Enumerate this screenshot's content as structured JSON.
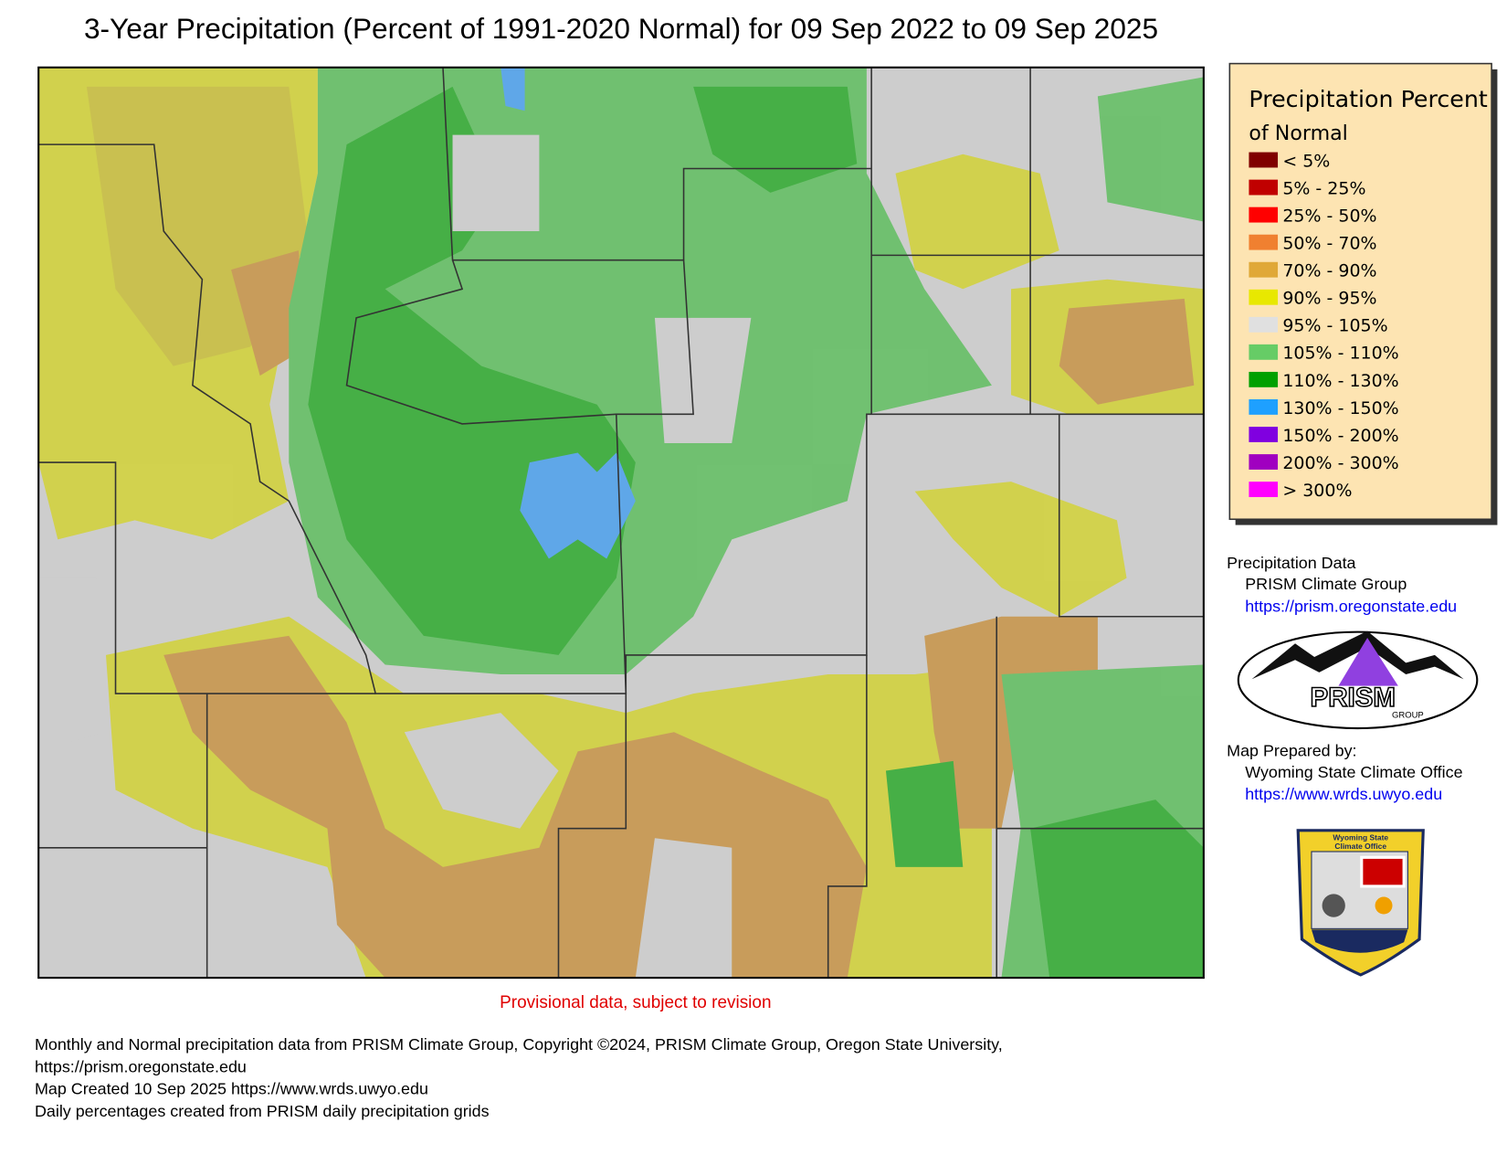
{
  "title": "3-Year Precipitation (Percent of 1991-2020 Normal) for 09 Sep 2022 to 09 Sep 2025",
  "legend": {
    "title_line1": "Precipitation Percent",
    "title_line2": "of Normal",
    "items": [
      {
        "label": "< 5%",
        "color": "#800000"
      },
      {
        "label": "5% - 25%",
        "color": "#c00000"
      },
      {
        "label": "25% - 50%",
        "color": "#ff0000"
      },
      {
        "label": "50% - 70%",
        "color": "#f08030"
      },
      {
        "label": "70% - 90%",
        "color": "#e0a838"
      },
      {
        "label": "90% - 95%",
        "color": "#e8e800"
      },
      {
        "label": "95% - 105%",
        "color": "#e0e0e0"
      },
      {
        "label": "105% - 110%",
        "color": "#66cc66"
      },
      {
        "label": "110% - 130%",
        "color": "#00a000"
      },
      {
        "label": "130% - 150%",
        "color": "#1ea0ff"
      },
      {
        "label": "150% - 200%",
        "color": "#8000e0"
      },
      {
        "label": "200% - 300%",
        "color": "#a000c0"
      },
      {
        "label": "> 300%",
        "color": "#ff00ff"
      }
    ]
  },
  "credits": {
    "data_heading": "Precipitation Data",
    "data_source": "PRISM Climate Group",
    "data_url": "https://prism.oregonstate.edu",
    "prepared_heading": "Map Prepared by:",
    "prepared_by": "Wyoming State Climate Office",
    "prepared_url": "https://www.wrds.uwyo.edu"
  },
  "logos": {
    "prism": "PRISM",
    "prism_sub": "GROUP",
    "wsco_line1": "Wyoming State",
    "wsco_line2": "Climate Office"
  },
  "provisional": "Provisional data, subject to revision",
  "footer": [
    "Monthly and Normal precipitation data from PRISM Climate Group, Copyright ©2024, PRISM Climate Group, Oregon State University,",
    "https://prism.oregonstate.edu",
    "Map Created 10 Sep 2025 https://www.wrds.uwyo.edu",
    "Daily percentages created from PRISM daily precipitation grids"
  ]
}
